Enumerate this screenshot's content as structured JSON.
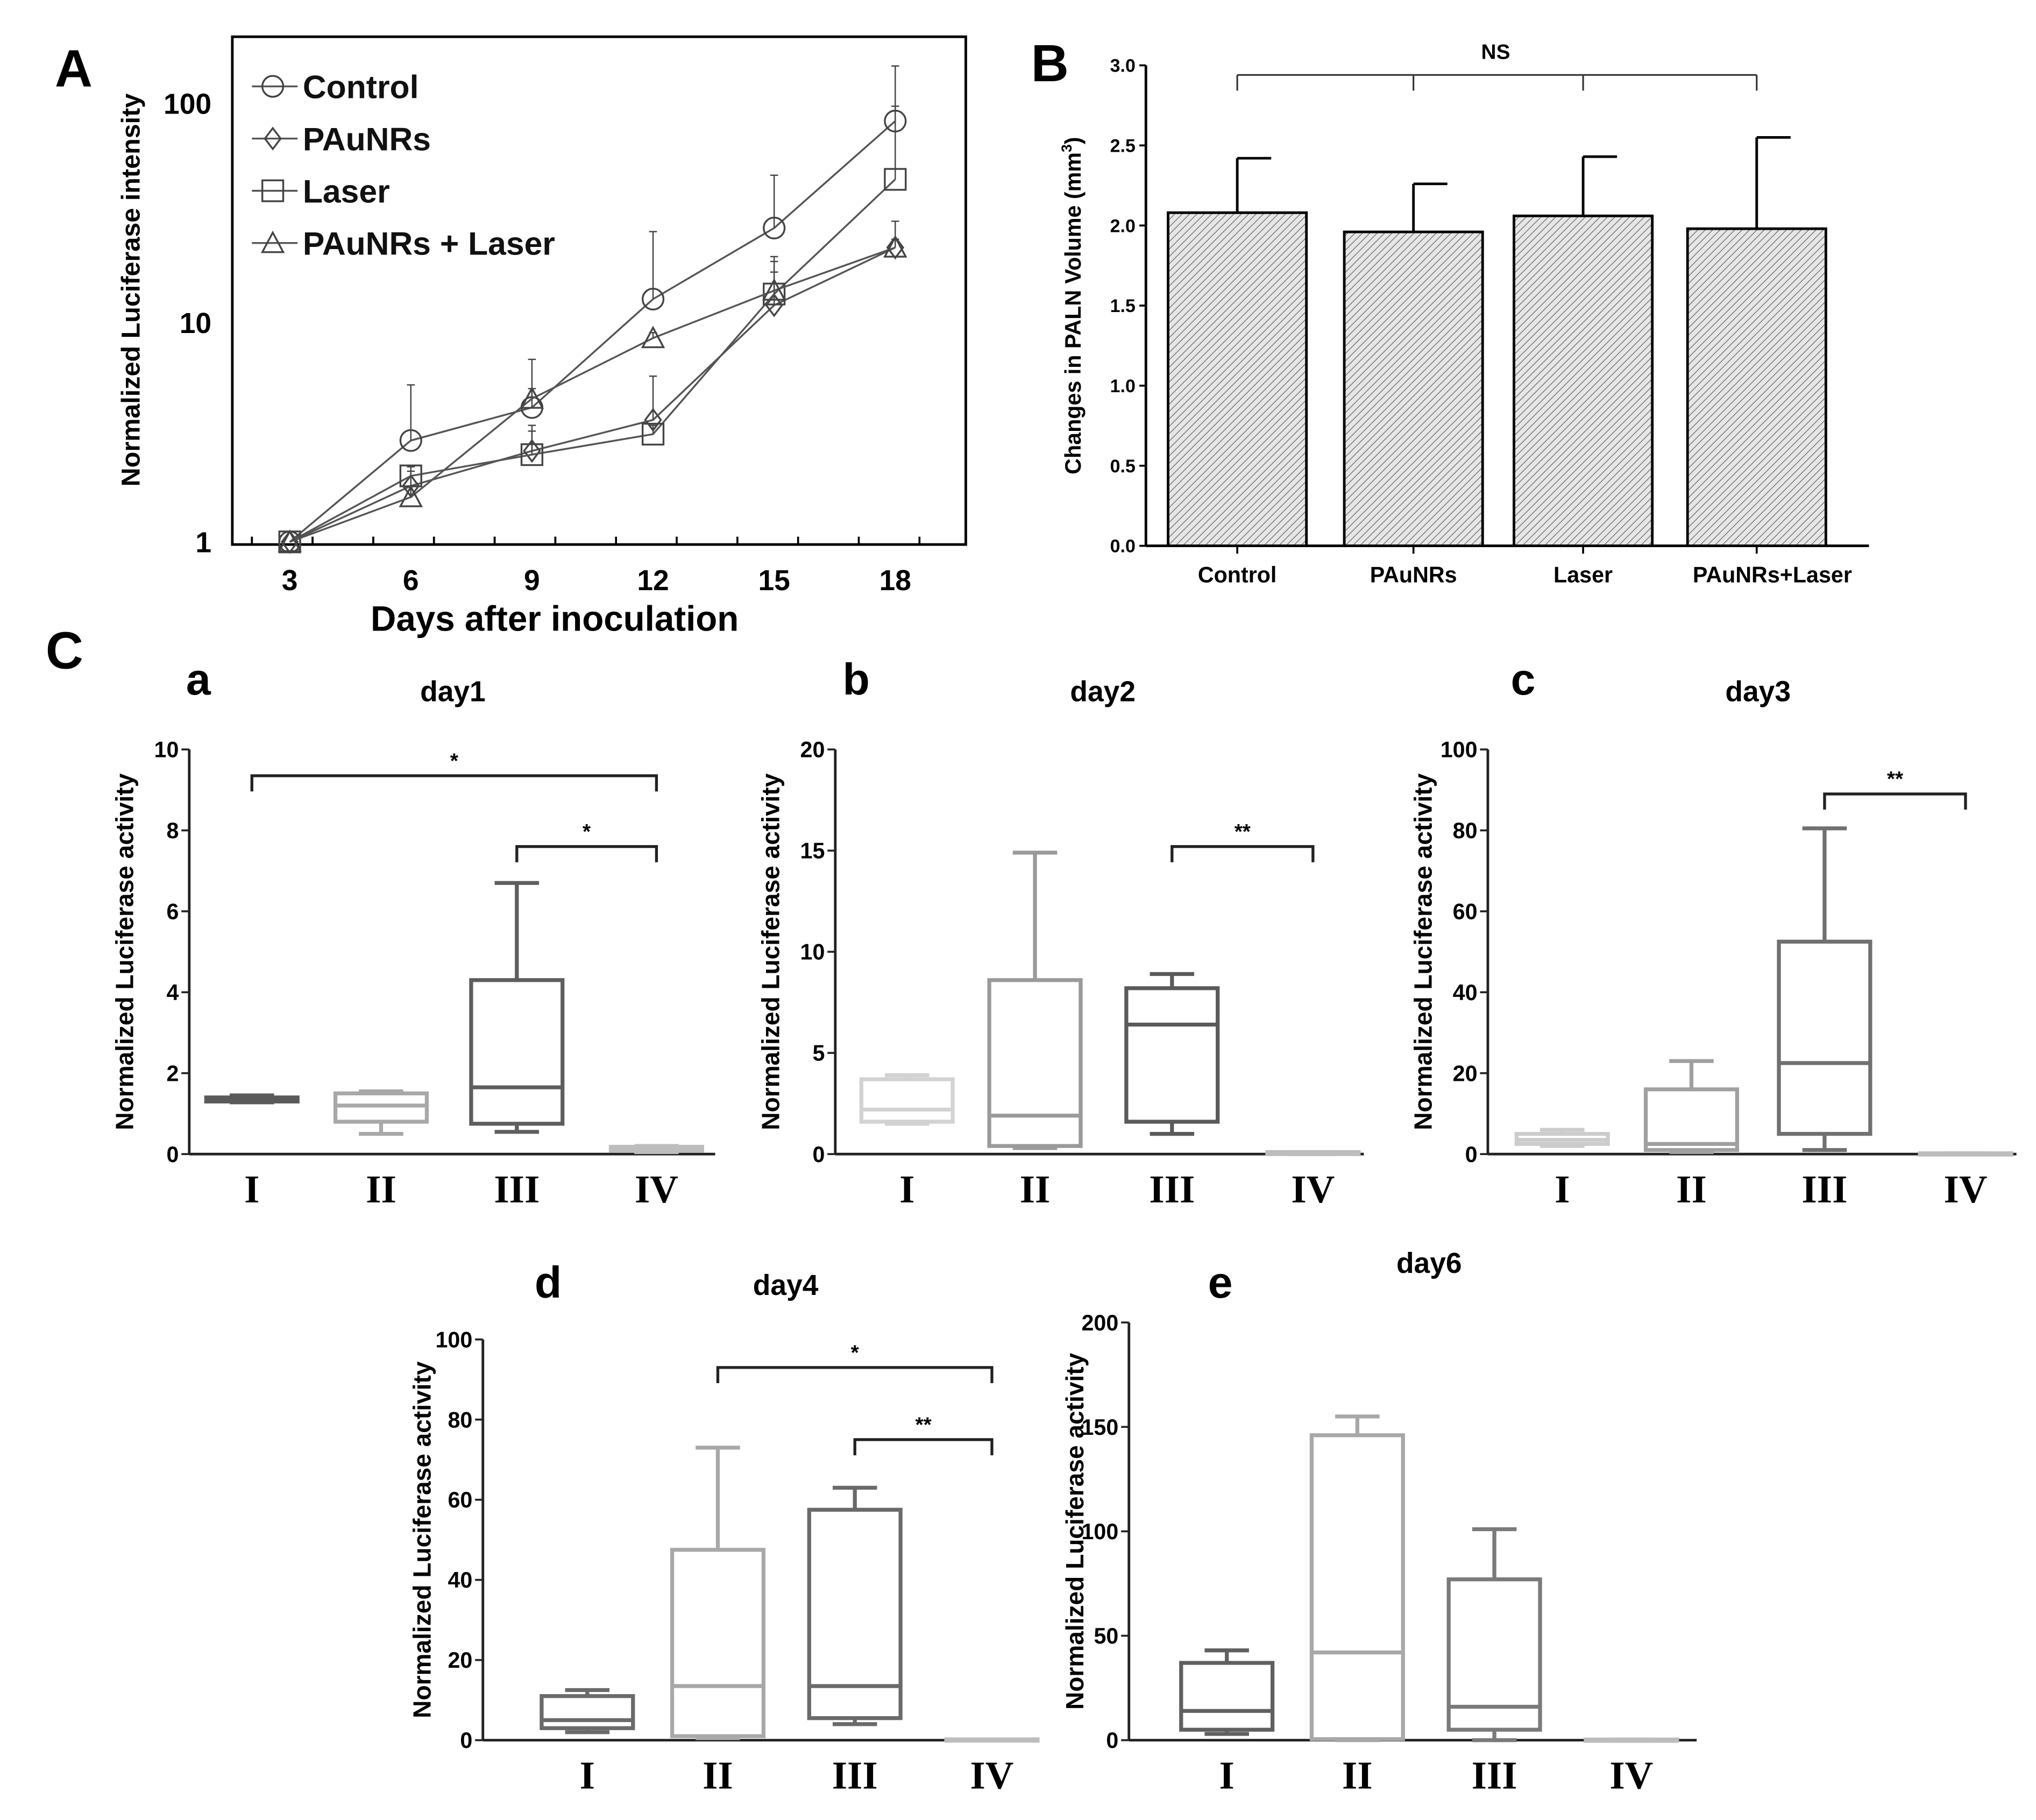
{
  "chart_data": [
    {
      "id": "A",
      "panel_label": "A",
      "type": "line",
      "title": "",
      "xlabel": "Days after inoculation",
      "ylabel": "Normalized Luciferase intensity",
      "yscale": "log",
      "ylim": [
        1,
        200
      ],
      "xlim": [
        1.5,
        19.5
      ],
      "xticks": [
        3,
        6,
        9,
        12,
        15,
        18
      ],
      "yticks": [
        {
          "v": 1,
          "label": "1"
        },
        {
          "v": 10,
          "label": "10"
        },
        {
          "v": 100,
          "label": "100"
        }
      ],
      "legend_position": "top-left",
      "x": [
        3,
        6,
        9,
        12,
        15,
        18
      ],
      "series": [
        {
          "name": "Control",
          "marker": "circle",
          "values": [
            1,
            2.9,
            4.1,
            12.8,
            27,
            83
          ],
          "err_upper": [
            1,
            5.2,
            6.8,
            26,
            47,
            148
          ]
        },
        {
          "name": "PAuNRs",
          "marker": "diamond",
          "values": [
            1,
            1.8,
            2.6,
            3.6,
            12,
            22
          ],
          "err_upper": [
            1,
            2.1,
            3.4,
            5.7,
            19,
            29
          ]
        },
        {
          "name": "Laser",
          "marker": "square",
          "values": [
            1,
            2.0,
            2.5,
            3.1,
            13.5,
            45
          ],
          "err_upper": [
            1,
            2.2,
            3.2,
            3.4,
            20,
            97
          ]
        },
        {
          "name": "PAuNRs + Laser",
          "marker": "triangle",
          "values": [
            1,
            1.6,
            4.5,
            8.5,
            14,
            22
          ],
          "err_upper": [
            1,
            1.8,
            5.0,
            9.0,
            17,
            24
          ]
        }
      ]
    },
    {
      "id": "B",
      "panel_label": "B",
      "type": "bar",
      "ylabel": "Changes in PALN Volume (mm",
      "ylabel_sup": "3",
      "ylabel_end": ")",
      "ylim": [
        0,
        3.0
      ],
      "yticks": [
        "0.0",
        "0.5",
        "1.0",
        "1.5",
        "2.0",
        "2.5",
        "3.0"
      ],
      "categories": [
        "Control",
        "PAuNRs",
        "Laser",
        "PAuNRs+Laser"
      ],
      "values": [
        2.08,
        1.96,
        2.06,
        1.98
      ],
      "err_upper": [
        2.42,
        2.26,
        2.43,
        2.55
      ],
      "annotation": "NS",
      "annotation_level": 2.94,
      "fill_pattern": "diagonal-hatch"
    },
    {
      "id": "C-a",
      "panel_label": "C",
      "sub_label": "a",
      "type": "box",
      "title": "day1",
      "ylabel": "Normalized Luciferase activity",
      "ylim": [
        0,
        10
      ],
      "yticks": [
        "0",
        "2",
        "4",
        "6",
        "8",
        "10"
      ],
      "categories": [
        "I",
        "II",
        "III",
        "IV"
      ],
      "boxes": [
        {
          "min": 1.28,
          "q1": 1.3,
          "median": 1.35,
          "q3": 1.4,
          "max": 1.45,
          "color": "#5a5a5a"
        },
        {
          "min": 0.5,
          "q1": 0.8,
          "median": 1.2,
          "q3": 1.5,
          "max": 1.55,
          "color": "#a8a8a8"
        },
        {
          "min": 0.55,
          "q1": 0.75,
          "median": 1.65,
          "q3": 4.3,
          "max": 6.7,
          "color": "#5e5e5e"
        },
        {
          "min": 0.05,
          "q1": 0.08,
          "median": 0.1,
          "q3": 0.18,
          "max": 0.2,
          "color": "#bdbdbd"
        }
      ],
      "significance": [
        {
          "from": 0,
          "to": 3,
          "level": 9.35,
          "label": "*"
        },
        {
          "from": 2,
          "to": 3,
          "level": 7.6,
          "label": "*"
        }
      ]
    },
    {
      "id": "C-b",
      "sub_label": "b",
      "type": "box",
      "title": "day2",
      "ylabel": "Normalized Luciferase activity",
      "ylim": [
        0,
        20
      ],
      "yticks": [
        "0",
        "5",
        "10",
        "15",
        "20"
      ],
      "categories": [
        "I",
        "II",
        "III",
        "IV"
      ],
      "boxes": [
        {
          "min": 1.5,
          "q1": 1.6,
          "median": 2.2,
          "q3": 3.7,
          "max": 3.9,
          "color": "#d2d2d2"
        },
        {
          "min": 0.3,
          "q1": 0.4,
          "median": 1.9,
          "q3": 8.6,
          "max": 14.9,
          "color": "#9a9a9a"
        },
        {
          "min": 1.0,
          "q1": 1.6,
          "median": 6.4,
          "q3": 8.2,
          "max": 8.9,
          "color": "#5a5a5a"
        },
        {
          "min": 0,
          "q1": 0,
          "median": 0.05,
          "q3": 0.1,
          "max": 0.1,
          "color": "#bdbdbd"
        }
      ],
      "significance": [
        {
          "from": 2,
          "to": 3,
          "level": 15.2,
          "label": "**"
        }
      ]
    },
    {
      "id": "C-c",
      "sub_label": "c",
      "type": "box",
      "title": "day3",
      "ylabel": "Normalized Luciferase activity",
      "ylim": [
        0,
        100
      ],
      "yticks": [
        "0",
        "20",
        "40",
        "60",
        "80",
        "100"
      ],
      "categories": [
        "I",
        "II",
        "III",
        "IV"
      ],
      "boxes": [
        {
          "min": 2,
          "q1": 2.5,
          "median": 3.5,
          "q3": 5,
          "max": 6,
          "color": "#cccccc"
        },
        {
          "min": 0.5,
          "q1": 1,
          "median": 2.5,
          "q3": 16,
          "max": 23,
          "color": "#a0a0a0"
        },
        {
          "min": 1,
          "q1": 5,
          "median": 22.5,
          "q3": 52.5,
          "max": 80.5,
          "color": "#707070"
        },
        {
          "min": 0,
          "q1": 0,
          "median": 0,
          "q3": 0.2,
          "max": 0.2,
          "color": "#bdbdbd"
        }
      ],
      "significance": [
        {
          "from": 2,
          "to": 3,
          "level": 89,
          "label": "**"
        }
      ]
    },
    {
      "id": "C-d",
      "sub_label": "d",
      "type": "box",
      "title": "day4",
      "ylabel": "Normalized Luciferase activity",
      "ylim": [
        0,
        100
      ],
      "yticks": [
        "0",
        "20",
        "40",
        "60",
        "80",
        "100"
      ],
      "categories": [
        "I",
        "II",
        "III",
        "IV"
      ],
      "boxes": [
        {
          "min": 2,
          "q1": 3,
          "median": 5,
          "q3": 11,
          "max": 12.5,
          "color": "#6a6a6a"
        },
        {
          "min": 0.5,
          "q1": 1,
          "median": 13.5,
          "q3": 47.5,
          "max": 73,
          "color": "#a8a8a8"
        },
        {
          "min": 4,
          "q1": 5.5,
          "median": 13.5,
          "q3": 57.5,
          "max": 63,
          "color": "#6a6a6a"
        },
        {
          "min": 0,
          "q1": 0,
          "median": 0,
          "q3": 0.2,
          "max": 0.2,
          "color": "#bdbdbd"
        }
      ],
      "significance": [
        {
          "from": 1,
          "to": 3,
          "level": 93,
          "label": "*"
        },
        {
          "from": 2,
          "to": 3,
          "level": 75,
          "label": "**"
        }
      ]
    },
    {
      "id": "C-e",
      "sub_label": "e",
      "type": "box",
      "title": "day6",
      "ylabel": "Normalized Luciferase activity",
      "ylim": [
        0,
        200
      ],
      "yticks": [
        "0",
        "50",
        "100",
        "150",
        "200"
      ],
      "categories": [
        "I",
        "II",
        "III",
        "IV"
      ],
      "boxes": [
        {
          "min": 3,
          "q1": 5,
          "median": 14,
          "q3": 37,
          "max": 43,
          "color": "#606060"
        },
        {
          "min": 0,
          "q1": 0.5,
          "median": 42,
          "q3": 146,
          "max": 155,
          "color": "#a8a8a8"
        },
        {
          "min": 0,
          "q1": 5,
          "median": 16,
          "q3": 77,
          "max": 101,
          "color": "#7a7a7a"
        },
        {
          "min": 0,
          "q1": 0,
          "median": 0,
          "q3": 0.3,
          "max": 0.3,
          "color": "#bdbdbd"
        }
      ],
      "significance": []
    }
  ]
}
